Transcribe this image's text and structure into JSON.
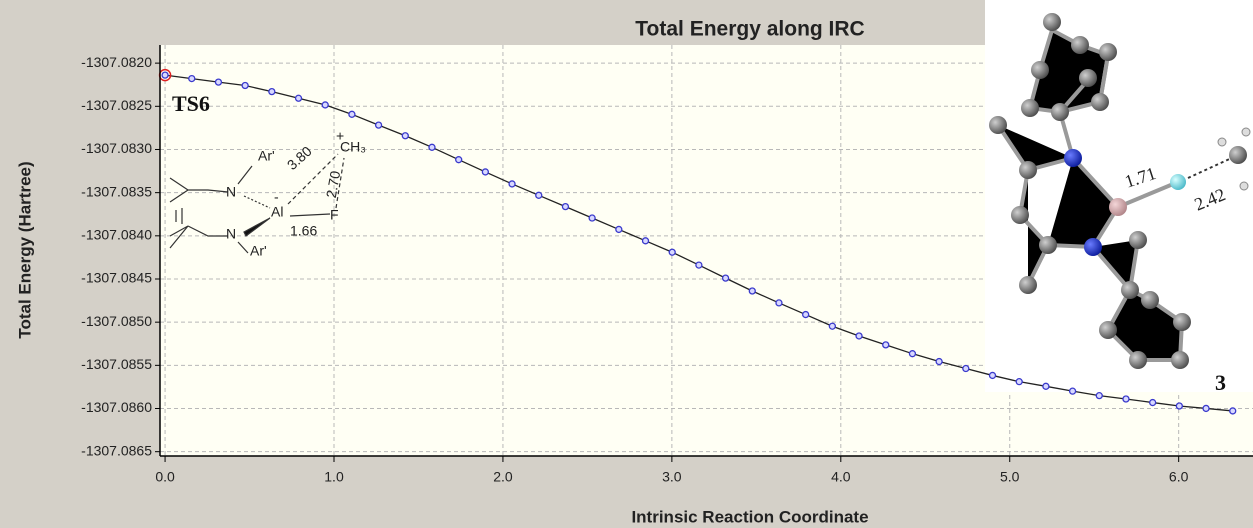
{
  "chart_data": {
    "type": "line",
    "title": "Total Energy along IRC",
    "x_label": "Intrinsic Reaction Coordinate",
    "y_label": "Total Energy (Hartree)",
    "x": [
      0,
      0.158,
      0.316,
      0.474,
      0.632,
      0.79,
      0.948,
      1.106,
      1.264,
      1.422,
      1.58,
      1.738,
      1.896,
      2.054,
      2.212,
      2.37,
      2.528,
      2.686,
      2.844,
      3.002,
      3.16,
      3.318,
      3.476,
      3.634,
      3.792,
      3.95,
      4.108,
      4.266,
      4.424,
      4.582,
      4.74,
      4.898,
      5.056,
      5.214,
      5.372,
      5.53,
      5.688,
      5.846,
      6.004,
      6.162,
      6.32
    ],
    "series": [
      {
        "color": "#3a3acc",
        "values": [
          -1307.082139,
          -1307.082179,
          -1307.08222,
          -1307.082259,
          -1307.08233,
          -1307.082407,
          -1307.082484,
          -1307.082593,
          -1307.082718,
          -1307.082841,
          -1307.082975,
          -1307.083118,
          -1307.08326,
          -1307.083399,
          -1307.083531,
          -1307.083662,
          -1307.083794,
          -1307.083926,
          -1307.084058,
          -1307.08419,
          -1307.084339,
          -1307.08449,
          -1307.084639,
          -1307.084777,
          -1307.084912,
          -1307.085047,
          -1307.08516,
          -1307.085263,
          -1307.085365,
          -1307.085456,
          -1307.085537,
          -1307.085617,
          -1307.085689,
          -1307.085743,
          -1307.085799,
          -1307.085851,
          -1307.08589,
          -1307.085931,
          -1307.085971,
          -1307.085999,
          -1307.086028
        ]
      }
    ],
    "xlim": [
      -0.03,
      6.44
    ],
    "ylim": [
      -1307.08655,
      -1307.08179
    ],
    "xticks": [
      {
        "value": 0,
        "label": "0.0"
      },
      {
        "value": 1,
        "label": "1.0"
      },
      {
        "value": 2,
        "label": "2.0"
      },
      {
        "value": 3,
        "label": "3.0"
      },
      {
        "value": 4,
        "label": "4.0"
      },
      {
        "value": 5,
        "label": "5.0"
      },
      {
        "value": 6,
        "label": "6.0"
      }
    ],
    "yticks": [
      {
        "value": -1307.082,
        "label": "-1307.0820"
      },
      {
        "value": -1307.0825,
        "label": "-1307.0825"
      },
      {
        "value": -1307.083,
        "label": "-1307.0830"
      },
      {
        "value": -1307.0835,
        "label": "-1307.0835"
      },
      {
        "value": -1307.084,
        "label": "-1307.0840"
      },
      {
        "value": -1307.0845,
        "label": "-1307.0845"
      },
      {
        "value": -1307.085,
        "label": "-1307.0850"
      },
      {
        "value": -1307.0855,
        "label": "-1307.0855"
      },
      {
        "value": -1307.086,
        "label": "-1307.0860"
      },
      {
        "value": -1307.0865,
        "label": "-1307.0865"
      }
    ],
    "grid": true,
    "highlight_color": "#e02020",
    "annotations": {
      "start": "TS6",
      "end": "3",
      "scheme": {
        "ar_top": "Ar'",
        "n_top": "N",
        "al": "Al",
        "al_charge": "-",
        "f": "F",
        "ch3": "CH₃",
        "ch3_charge": "+",
        "d_al_c": "3.80",
        "d_f_c": "2.70",
        "d_al_f": "1.66",
        "n_bottom": "N",
        "ar_bottom": "Ar'"
      },
      "model": {
        "d_al_f": "1.71",
        "d_f_c": "2.42"
      }
    }
  }
}
